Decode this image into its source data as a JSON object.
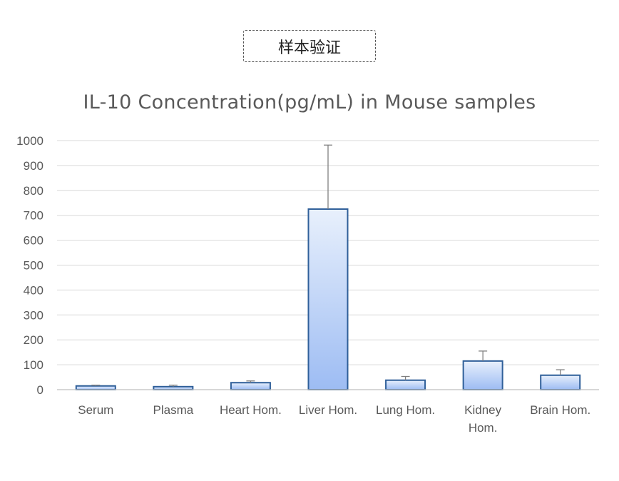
{
  "badge": {
    "label": "样本验证"
  },
  "chart_data": {
    "type": "bar",
    "title": "IL-10 Concentration(pg/mL)  in Mouse samples",
    "xlabel": "",
    "ylabel": "",
    "categories": [
      [
        "Serum"
      ],
      [
        "Plasma"
      ],
      [
        "Heart Hom."
      ],
      [
        "Liver Hom."
      ],
      [
        "Lung Hom."
      ],
      [
        "Kidney",
        "Hom."
      ],
      [
        "Brain Hom."
      ]
    ],
    "values": [
      15,
      12,
      28,
      725,
      38,
      115,
      58
    ],
    "error_upper": [
      18,
      18,
      35,
      982,
      53,
      155,
      80
    ],
    "ylim": [
      0,
      1000
    ],
    "yticks": [
      0,
      100,
      200,
      300,
      400,
      500,
      600,
      700,
      800,
      900,
      1000
    ],
    "grid": true,
    "colors": {
      "bar_top": "#e8f0fc",
      "bar_bottom": "#9dbcf3",
      "bar_stroke": "#2f5f99",
      "error": "#7f7f7f",
      "grid": "#d9d9d9",
      "axis": "#bfbfbf"
    }
  }
}
